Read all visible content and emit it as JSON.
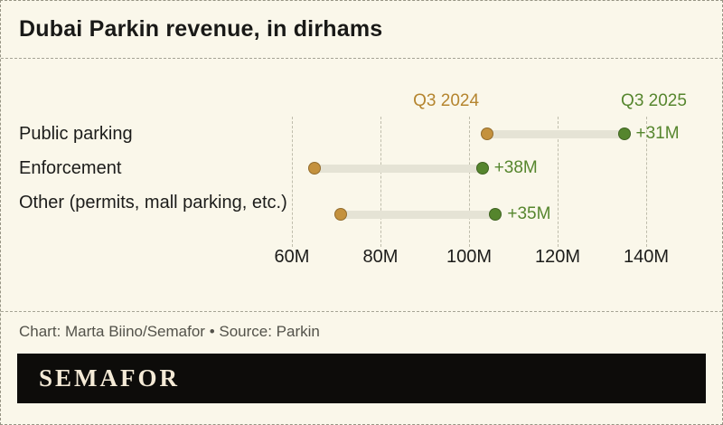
{
  "title": "Dubai Parkin revenue, in dirhams",
  "footer": {
    "credit": "Chart: Marta Biino/Semafor • Source: Parkin",
    "logo": "SEMAFOR"
  },
  "chart_data": {
    "type": "dumbbell",
    "title": "Dubai Parkin revenue, in dirhams",
    "categories": [
      "Public parking",
      "Enforcement",
      "Other (permits, mall parking, etc.)"
    ],
    "series": [
      {
        "name": "Q3 2024",
        "color": "#b5852f",
        "dot_color": "#c4913d",
        "values": [
          104,
          65,
          71
        ]
      },
      {
        "name": "Q3 2025",
        "color": "#56862e",
        "dot_color": "#55852d",
        "values": [
          135,
          103,
          106
        ]
      }
    ],
    "deltas": [
      "+31M",
      "+38M",
      "+35M"
    ],
    "delta_color": "#56862e",
    "x_axis": {
      "tick_labels": [
        "60M",
        "80M",
        "100M",
        "120M",
        "140M"
      ],
      "tick_values": [
        60,
        80,
        100,
        120,
        140
      ],
      "unit": "M dirhams"
    },
    "connector_color": "#e5e3d5",
    "grid": "dashed-vertical",
    "legend_position": "above-points"
  }
}
